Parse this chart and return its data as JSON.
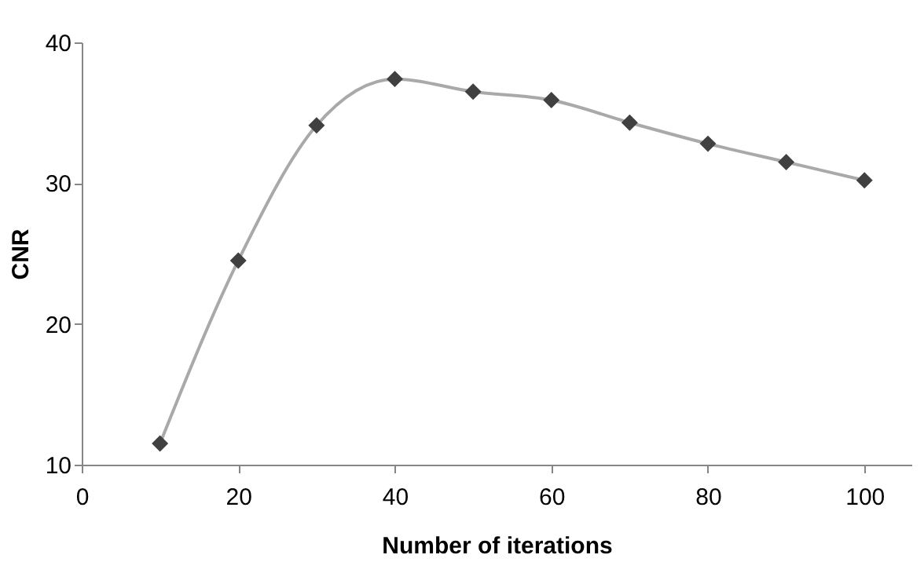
{
  "chart_data": {
    "type": "line",
    "xlabel": "Number of iterations",
    "ylabel": "CNR",
    "x": [
      10,
      20,
      30,
      40,
      50,
      60,
      70,
      80,
      90,
      100
    ],
    "series": [
      {
        "color": "#404040",
        "values": [
          11.5,
          24.5,
          34.1,
          37.4,
          36.5,
          35.9,
          34.3,
          32.8,
          31.5,
          30.2
        ]
      }
    ],
    "xlim": [
      0,
      106
    ],
    "xticks": [
      0,
      20,
      40,
      60,
      80,
      100
    ],
    "ylim": [
      10,
      40
    ],
    "yticks": [
      10,
      20,
      30,
      40
    ],
    "marker": "diamond",
    "line_style": "solid"
  }
}
